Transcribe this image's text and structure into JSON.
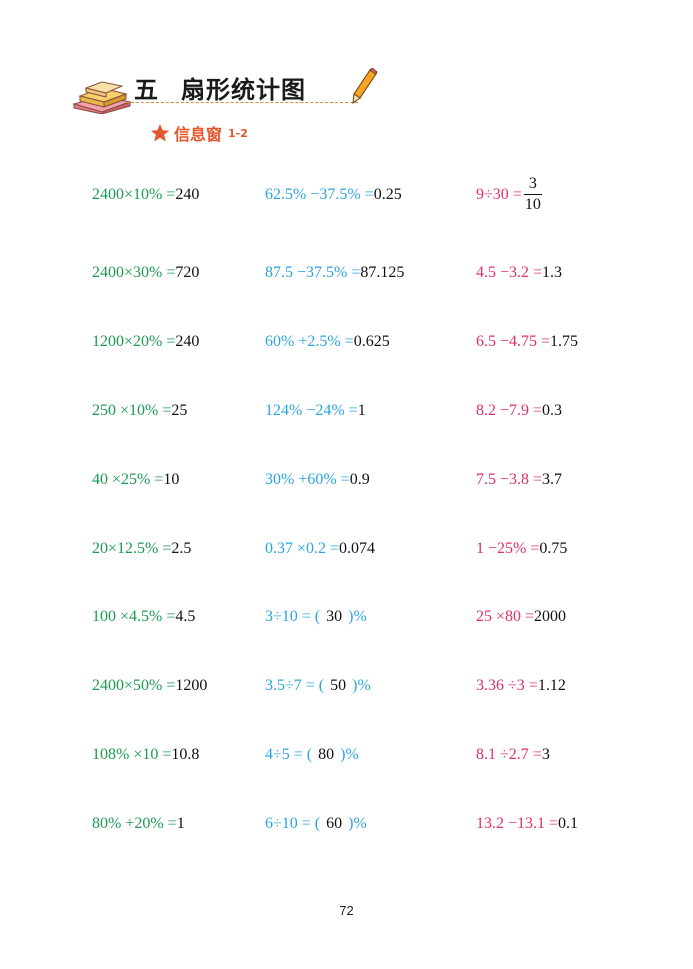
{
  "header": {
    "chapter_num": "五",
    "chapter_title": "扇形统计图",
    "section": "信息窗",
    "section_sub": "1-2"
  },
  "colors": {
    "green": "#1c9a52",
    "blue": "#2aa5dc",
    "pink": "#e0306a",
    "orange": "#e4572e"
  },
  "rows": [
    {
      "c1": {
        "expr": "2400×10% =",
        "ans": "240"
      },
      "c2": {
        "expr": "62.5% −37.5% =",
        "ans": "0.25"
      },
      "c3": {
        "expr": "9÷30 =",
        "num": "3",
        "den": "10"
      }
    },
    {
      "c1": {
        "expr": "2400×30% =",
        "ans": "720"
      },
      "c2": {
        "expr": "87.5 −37.5% =",
        "ans": "87.125"
      },
      "c3": {
        "expr": "4.5 −3.2 =",
        "ans": "1.3"
      }
    },
    {
      "c1": {
        "expr": "1200×20% =",
        "ans": "240"
      },
      "c2": {
        "expr": "60% +2.5% =",
        "ans": "0.625"
      },
      "c3": {
        "expr": "6.5 −4.75 =",
        "ans": "1.75"
      }
    },
    {
      "c1": {
        "expr": "250 ×10% =",
        "ans": "25"
      },
      "c2": {
        "expr": "124% −24% =",
        "ans": "1"
      },
      "c3": {
        "expr": "8.2 −7.9 =",
        "ans": "0.3"
      }
    },
    {
      "c1": {
        "expr": "40 ×25% =",
        "ans": "10"
      },
      "c2": {
        "expr": "30% +60% =",
        "ans": "0.9"
      },
      "c3": {
        "expr": "7.5 −3.8 =",
        "ans": "3.7"
      }
    },
    {
      "c1": {
        "expr": "20×12.5% =",
        "ans": "2.5"
      },
      "c2": {
        "expr": "0.37 ×0.2 =",
        "ans": "0.074"
      },
      "c3": {
        "expr": "1 −25% =",
        "ans": "0.75"
      }
    },
    {
      "c1": {
        "expr": "100 ×4.5% =",
        "ans": "4.5"
      },
      "c2": {
        "pre": "3÷10 = (",
        "ans": "30",
        "post": ")%"
      },
      "c3": {
        "expr": "25 ×80 =",
        "ans": "2000"
      }
    },
    {
      "c1": {
        "expr": "2400×50% =",
        "ans": "1200"
      },
      "c2": {
        "pre": "3.5÷7 = (",
        "ans": "50",
        "post": ")%"
      },
      "c3": {
        "expr": "3.36 ÷3 =",
        "ans": "1.12"
      }
    },
    {
      "c1": {
        "expr": "108% ×10 =",
        "ans": "10.8"
      },
      "c2": {
        "pre": "4÷5 = (",
        "ans": "80",
        "post": ")%"
      },
      "c3": {
        "expr": "8.1 ÷2.7 =",
        "ans": "3"
      }
    },
    {
      "c1": {
        "expr": "80% +20% =",
        "ans": "1"
      },
      "c2": {
        "pre": "6÷10 = (",
        "ans": "60",
        "post": ")%"
      },
      "c3": {
        "expr": "13.2 −13.1 =",
        "ans": "0.1"
      }
    }
  ],
  "page_number": "72"
}
